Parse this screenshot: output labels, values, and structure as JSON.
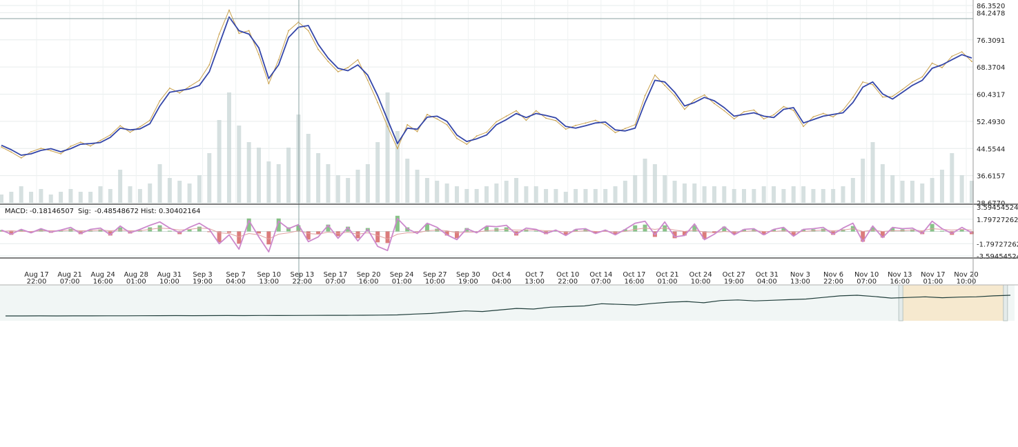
{
  "chart_data": [
    {
      "id": "price",
      "type": "line",
      "ylim": [
        28.677,
        86.352
      ],
      "price_ticks": [
        "86.3520",
        "84.2478",
        "76.3091",
        "68.3704",
        "60.4317",
        "52.4930",
        "44.5544",
        "36.6157",
        "28.6770"
      ],
      "x_ticks": [
        {
          "date": "Aug 17",
          "time": "22:00"
        },
        {
          "date": "Aug 21",
          "time": "07:00"
        },
        {
          "date": "Aug 24",
          "time": "16:00"
        },
        {
          "date": "Aug 28",
          "time": "01:00"
        },
        {
          "date": "Aug 31",
          "time": "10:00"
        },
        {
          "date": "Sep 3",
          "time": "19:00"
        },
        {
          "date": "Sep 7",
          "time": "04:00"
        },
        {
          "date": "Sep 10",
          "time": "13:00"
        },
        {
          "date": "Sep 13",
          "time": "22:00"
        },
        {
          "date": "Sep 17",
          "time": "07:00"
        },
        {
          "date": "Sep 20",
          "time": "16:00"
        },
        {
          "date": "Sep 24",
          "time": "01:00"
        },
        {
          "date": "Sep 27",
          "time": "10:00"
        },
        {
          "date": "Sep 30",
          "time": "19:00"
        },
        {
          "date": "Oct 4",
          "time": "04:00"
        },
        {
          "date": "Oct 7",
          "time": "13:00"
        },
        {
          "date": "Oct 10",
          "time": "22:00"
        },
        {
          "date": "Oct 14",
          "time": "07:00"
        },
        {
          "date": "Oct 17",
          "time": "16:00"
        },
        {
          "date": "Oct 21",
          "time": "01:00"
        },
        {
          "date": "Oct 24",
          "time": "10:00"
        },
        {
          "date": "Oct 27",
          "time": "19:00"
        },
        {
          "date": "Oct 31",
          "time": "04:00"
        },
        {
          "date": "Nov 3",
          "time": "13:00"
        },
        {
          "date": "Nov 6",
          "time": "22:00"
        },
        {
          "date": "Nov 10",
          "time": "07:00"
        },
        {
          "date": "Nov 13",
          "time": "16:00"
        },
        {
          "date": "Nov 17",
          "time": "01:00"
        },
        {
          "date": "Nov 20",
          "time": "10:00"
        }
      ],
      "series": [
        {
          "role": "moving-average",
          "color": "#3345a8",
          "values": [
            45.5,
            44.2,
            42.6,
            43.0,
            44.0,
            44.5,
            43.6,
            44.5,
            45.8,
            46.0,
            46.3,
            47.8,
            50.5,
            50.0,
            50.3,
            51.8,
            57.0,
            61.0,
            61.5,
            62.0,
            63.0,
            67.0,
            75.0,
            83.0,
            79.0,
            78.0,
            74.0,
            65.0,
            69.0,
            77.0,
            80.0,
            80.5,
            75.0,
            71.0,
            68.0,
            67.3,
            69.0,
            66.0,
            60.0,
            53.0,
            46.0,
            50.5,
            50.2,
            53.7,
            54.0,
            52.5,
            48.5,
            46.6,
            47.4,
            48.5,
            51.5,
            53.0,
            54.8,
            53.6,
            54.8,
            54.2,
            53.5,
            51.0,
            50.5,
            51.2,
            52.0,
            52.3,
            50.0,
            49.7,
            50.5,
            58.0,
            64.5,
            64.0,
            61.0,
            57.0,
            58.0,
            59.5,
            58.5,
            56.5,
            54.0,
            54.5,
            55.0,
            54.0,
            53.6,
            56.0,
            56.5,
            52.0,
            53.0,
            54.0,
            54.5,
            55.0,
            58.0,
            62.5,
            64.0,
            60.5,
            59.0,
            61.0,
            63.0,
            64.5,
            68.0,
            69.0,
            70.5,
            72.0,
            71.0
          ]
        },
        {
          "role": "price",
          "color": "#c9a04a",
          "values": [
            45.0,
            43.5,
            41.8,
            43.6,
            44.6,
            43.9,
            43.0,
            45.2,
            46.4,
            45.3,
            46.9,
            48.5,
            51.2,
            49.3,
            50.9,
            52.8,
            58.5,
            62.2,
            60.8,
            62.7,
            64.5,
            69.0,
            78.0,
            85.0,
            78.2,
            79.0,
            72.0,
            63.5,
            70.5,
            79.0,
            81.5,
            79.0,
            73.5,
            70.0,
            67.0,
            68.2,
            70.5,
            64.5,
            58.0,
            51.0,
            44.5,
            51.5,
            49.5,
            54.5,
            53.2,
            51.5,
            47.5,
            45.8,
            48.2,
            49.3,
            52.4,
            54.0,
            55.6,
            52.8,
            55.6,
            53.4,
            52.7,
            50.2,
            51.3,
            52.0,
            52.8,
            51.5,
            49.2,
            50.4,
            51.5,
            60.0,
            66.0,
            63.0,
            60.0,
            56.0,
            58.8,
            60.2,
            57.7,
            55.6,
            53.2,
            55.3,
            55.8,
            53.2,
            54.4,
            56.8,
            55.7,
            51.0,
            53.8,
            54.8,
            53.8,
            55.8,
            59.5,
            64.0,
            63.2,
            59.6,
            59.8,
            61.8,
            64.0,
            65.5,
            69.5,
            68.2,
            71.5,
            72.8,
            70.0
          ]
        }
      ],
      "volume": [
        3,
        4,
        6,
        4,
        5,
        3,
        4,
        5,
        4,
        4,
        6,
        5,
        12,
        6,
        5,
        7,
        14,
        9,
        8,
        7,
        10,
        18,
        30,
        40,
        28,
        22,
        20,
        15,
        14,
        20,
        32,
        25,
        18,
        14,
        10,
        9,
        12,
        14,
        22,
        40,
        26,
        16,
        12,
        9,
        8,
        7,
        6,
        5,
        5,
        6,
        7,
        8,
        9,
        6,
        6,
        5,
        5,
        4,
        5,
        5,
        5,
        5,
        6,
        8,
        10,
        16,
        14,
        10,
        8,
        7,
        7,
        6,
        6,
        6,
        5,
        5,
        5,
        6,
        6,
        5,
        6,
        6,
        5,
        5,
        5,
        6,
        9,
        16,
        22,
        14,
        10,
        8,
        8,
        7,
        9,
        12,
        18,
        10,
        8
      ]
    },
    {
      "id": "macd",
      "type": "line",
      "ylim": [
        -3.5945452,
        3.5945452
      ],
      "ticks": [
        "3.59454524",
        "1.79727262",
        "-1.79727262",
        "-3.59454524"
      ],
      "readout": {
        "macd_label": "MACD:",
        "macd_value": "-0.18146507",
        "sig_label": "Sig:",
        "sig_value": "-0.48548672",
        "hist_label": "Hist:",
        "hist_value": "0.30402164"
      },
      "series": [
        {
          "role": "macd",
          "color": "#cc88cc",
          "values": [
            0.2,
            -0.4,
            0.3,
            -0.2,
            0.4,
            -0.1,
            0.2,
            0.6,
            -0.3,
            0.3,
            0.5,
            -0.5,
            0.8,
            -0.2,
            0.3,
            0.9,
            1.4,
            0.5,
            -0.2,
            0.6,
            1.2,
            0.3,
            -1.8,
            -0.5,
            -2.6,
            1.6,
            -0.8,
            -3.0,
            1.5,
            0.4,
            1.0,
            -1.5,
            -0.8,
            0.9,
            -1.0,
            0.6,
            -1.4,
            0.3,
            -2.2,
            -2.8,
            1.9,
            0.4,
            -0.3,
            1.2,
            0.6,
            -0.5,
            -1.2,
            0.4,
            -0.2,
            0.8,
            0.7,
            0.9,
            -0.4,
            0.5,
            0.3,
            -0.3,
            0.2,
            -0.6,
            0.3,
            0.4,
            -0.3,
            0.2,
            -0.5,
            0.3,
            1.2,
            1.5,
            -0.5,
            1.4,
            -0.8,
            -0.6,
            1.1,
            -1.2,
            -0.4,
            0.7,
            -0.5,
            0.3,
            0.4,
            -0.5,
            0.3,
            0.6,
            -0.7,
            0.3,
            0.4,
            0.6,
            -0.4,
            0.5,
            1.2,
            -1.5,
            0.8,
            -0.9,
            0.6,
            0.4,
            0.5,
            -0.3,
            1.5,
            0.4,
            -0.3,
            0.6,
            -0.2
          ]
        },
        {
          "role": "signal",
          "color": "#e0a0a0",
          "values": [
            0.0,
            0.1,
            0.0,
            0.0,
            0.1,
            0.1,
            0.1,
            0.2,
            0.1,
            0.1,
            0.2,
            0.1,
            0.2,
            0.1,
            0.1,
            0.3,
            0.5,
            0.4,
            0.2,
            0.3,
            0.5,
            0.4,
            -0.2,
            -0.3,
            -0.8,
            -0.3,
            -0.5,
            -1.1,
            -0.4,
            -0.2,
            0.1,
            -0.3,
            -0.4,
            -0.1,
            -0.3,
            -0.1,
            -0.4,
            -0.2,
            -0.6,
            -1.1,
            -0.4,
            -0.2,
            -0.2,
            0.1,
            0.2,
            0.1,
            -0.2,
            -0.1,
            -0.1,
            0.1,
            0.2,
            0.3,
            0.2,
            0.2,
            0.2,
            0.1,
            0.1,
            -0.1,
            0.0,
            0.1,
            0.0,
            0.0,
            -0.1,
            0.0,
            0.3,
            0.5,
            0.3,
            0.5,
            0.2,
            0.0,
            0.2,
            -0.1,
            -0.2,
            0.0,
            -0.1,
            0.0,
            0.1,
            0.0,
            0.0,
            0.1,
            -0.1,
            0.0,
            0.1,
            0.2,
            0.1,
            0.2,
            0.4,
            0.0,
            0.2,
            0.0,
            0.1,
            0.1,
            0.2,
            0.1,
            0.4,
            0.3,
            0.2,
            0.3,
            0.2
          ]
        },
        {
          "role": "histogram",
          "color_up": "#55aa55",
          "color_down": "#cc4444",
          "values": [
            0.2,
            -0.5,
            0.3,
            -0.2,
            0.3,
            -0.2,
            0.1,
            0.4,
            -0.4,
            0.2,
            0.3,
            -0.6,
            0.6,
            -0.3,
            0.2,
            0.6,
            0.9,
            0.1,
            -0.4,
            0.3,
            0.7,
            -0.1,
            -1.6,
            -0.2,
            -1.8,
            1.9,
            -0.3,
            -1.9,
            1.9,
            0.6,
            0.9,
            -1.2,
            -0.4,
            1.0,
            -0.7,
            0.7,
            -1.0,
            0.5,
            -1.6,
            -1.7,
            2.3,
            0.6,
            -0.1,
            1.1,
            0.4,
            -0.6,
            -1.0,
            0.5,
            -0.1,
            0.7,
            0.5,
            0.6,
            -0.6,
            0.3,
            0.1,
            -0.4,
            0.1,
            -0.5,
            0.3,
            0.3,
            -0.3,
            0.2,
            -0.4,
            0.3,
            0.9,
            1.0,
            -0.8,
            0.9,
            -1.0,
            -0.6,
            0.9,
            -1.1,
            -0.2,
            0.7,
            -0.4,
            0.3,
            0.3,
            -0.5,
            0.3,
            0.5,
            -0.6,
            0.3,
            0.3,
            0.4,
            -0.5,
            0.3,
            0.8,
            -1.5,
            0.6,
            -0.9,
            0.5,
            0.3,
            0.3,
            -0.4,
            1.1,
            0.1,
            -0.5,
            0.3,
            -0.4
          ]
        }
      ]
    },
    {
      "id": "navigator",
      "type": "area",
      "series": [
        {
          "role": "history",
          "color": "#1f3d3a",
          "values": [
            6,
            6,
            6.2,
            6.1,
            6.3,
            6.2,
            6.5,
            6.4,
            6.6,
            6.8,
            7.0,
            6.9,
            7.1,
            7.3,
            7.2,
            7.5,
            7.4,
            7.6,
            7.8,
            8.0,
            7.9,
            8.2,
            8.6,
            9.4,
            12,
            14,
            18,
            22,
            20,
            25,
            30,
            28,
            34,
            36,
            38,
            45,
            43,
            41,
            46,
            50,
            52,
            48,
            55,
            57,
            54,
            56,
            58,
            60,
            65,
            70,
            72,
            68,
            63,
            65,
            67,
            64,
            66,
            67,
            70,
            72
          ]
        }
      ],
      "selection_range": [
        0.893,
        0.993
      ],
      "selection_color": "#f6e9cf",
      "background_color": "#f1f6f5"
    }
  ]
}
